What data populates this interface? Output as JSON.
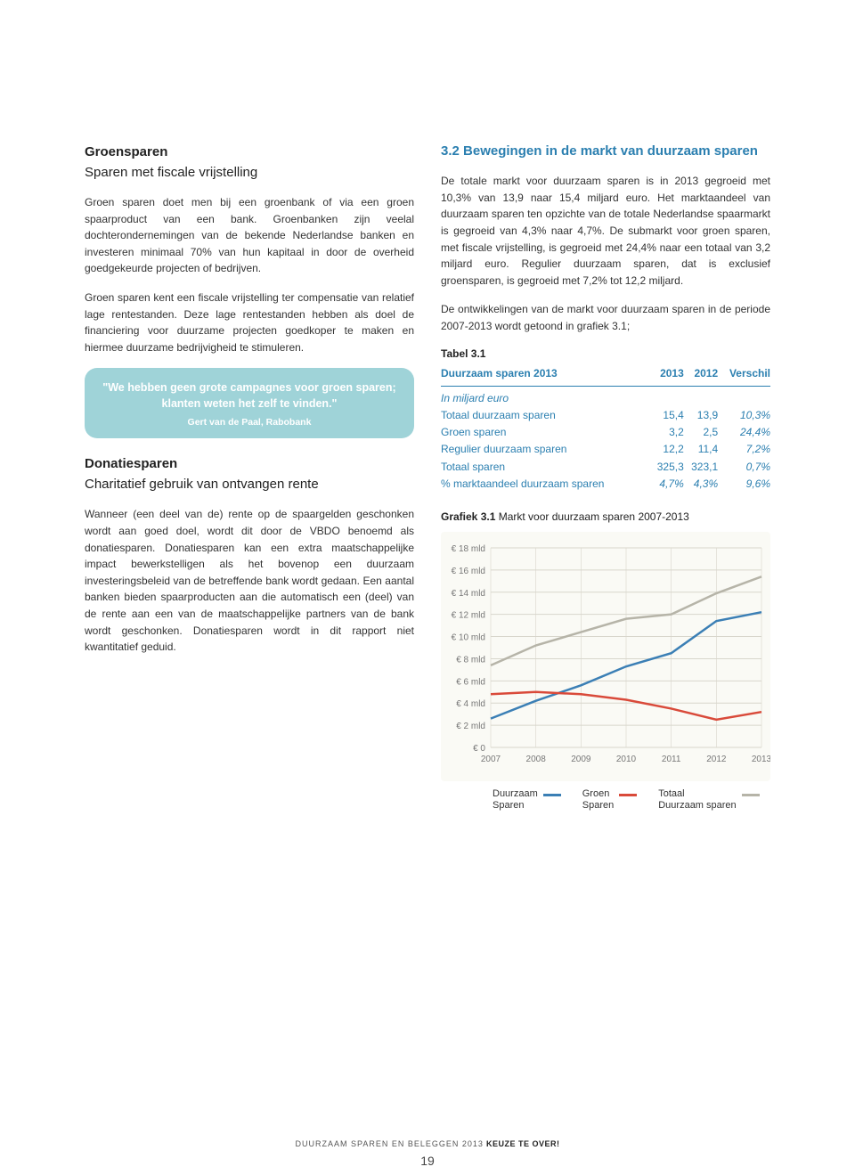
{
  "left": {
    "sec1_title": "Groensparen",
    "sec1_subtitle": "Sparen met fiscale vrijstelling",
    "sec1_p1": "Groen sparen doet men bij een groenbank of via een groen spaarproduct van een bank. Groenbanken zijn veelal dochterondernemingen van de bekende Nederlandse banken en investeren minimaal 70% van hun kapitaal in door de overheid goedgekeurde projecten of bedrijven.",
    "sec1_p2": "Groen sparen kent een fiscale vrijstelling ter compensatie van relatief lage rentestanden. Deze lage rentestanden hebben als doel de financiering voor duurzame projecten goedkoper te maken en hiermee duurzame bedrijvigheid te stimuleren.",
    "quote_text": "\"We hebben geen grote campagnes voor groen sparen; klanten weten het zelf te vinden.\"",
    "quote_author": "Gert van de Paal, Rabobank",
    "sec2_title": "Donatiesparen",
    "sec2_subtitle": "Charitatief gebruik van ontvangen rente",
    "sec2_p1": "Wanneer (een deel van de) rente op de spaargelden geschonken wordt aan goed doel, wordt dit door de VBDO benoemd als donatiesparen. Donatiesparen kan een extra maatschappelijke impact bewerkstelligen als het bovenop een duurzaam investeringsbeleid van de betreffende bank wordt gedaan. Een aantal banken bieden spaarproducten aan die automatisch een (deel) van de rente aan een van de maatschappelijke partners van de bank wordt geschonken. Donatiesparen wordt in dit rapport niet kwantitatief geduid."
  },
  "right": {
    "heading": "3.2 Bewegingen in de markt van duurzaam sparen",
    "p1": "De totale markt voor duurzaam sparen is in 2013 gegroeid met 10,3% van 13,9 naar 15,4 miljard euro. Het marktaandeel van duurzaam sparen ten opzichte van de totale Nederlandse spaarmarkt is gegroeid van 4,3% naar 4,7%. De submarkt voor groen sparen, met fiscale vrijstelling, is gegroeid met 24,4% naar een totaal van 3,2 miljard euro. Regulier duurzaam sparen, dat is exclusief groensparen, is gegroeid met 7,2% tot 12,2 miljard.",
    "p2": "De ontwikkelingen van de markt voor duurzaam sparen in de periode 2007-2013 wordt getoond in grafiek 3.1;",
    "table_label": "Tabel 3.1",
    "table": {
      "header": [
        "Duurzaam sparen 2013",
        "2013",
        "2012",
        "Verschil"
      ],
      "unit": "In miljard euro",
      "rows": [
        [
          "Totaal duurzaam sparen",
          "15,4",
          "13,9",
          "10,3%"
        ],
        [
          "Groen sparen",
          "3,2",
          "2,5",
          "24,4%"
        ],
        [
          "Regulier duurzaam sparen",
          "12,2",
          "11,4",
          "7,2%"
        ],
        [
          "Totaal sparen",
          "325,3",
          "323,1",
          "0,7%"
        ],
        [
          "% marktaandeel duurzaam sparen",
          "4,7%",
          "4,3%",
          "9,6%"
        ]
      ]
    },
    "chart_label_prefix": "Grafiek 3.1",
    "chart_label_rest": " Markt voor duurzaam sparen 2007-2013",
    "chart": {
      "type": "line",
      "background_color": "#fafaf5",
      "grid_color": "#d8d6cc",
      "ylim": [
        0,
        18
      ],
      "ytick_step": 2,
      "ytick_labels": [
        "€ 0",
        "€  2 mld",
        "€  4 mld",
        "€  6 mld",
        "€  8 mld",
        "€ 10 mld",
        "€ 12 mld",
        "€ 14 mld",
        "€ 16 mld",
        "€ 18 mld"
      ],
      "x_labels": [
        "2007",
        "2008",
        "2009",
        "2010",
        "2011",
        "2012",
        "2013"
      ],
      "series": [
        {
          "name": "Duurzaam Sparen",
          "color": "#3b7fb5",
          "line_width": 2.5,
          "values": [
            2.6,
            4.2,
            5.6,
            7.3,
            8.5,
            11.4,
            12.2
          ]
        },
        {
          "name": "Groen Sparen",
          "color": "#d94a3a",
          "line_width": 2.5,
          "values": [
            4.8,
            5.0,
            4.8,
            4.3,
            3.5,
            2.5,
            3.2
          ]
        },
        {
          "name": "Totaal Duurzaam sparen",
          "color": "#b6b4a8",
          "line_width": 2.5,
          "values": [
            7.4,
            9.2,
            10.4,
            11.6,
            12.0,
            13.9,
            15.4
          ]
        }
      ],
      "label_fontsize": 10,
      "axis_color": "#777"
    }
  },
  "footer": {
    "line": "DUURZAAM SPAREN EN BELEGGEN 2013",
    "strong": " KEUZE TE OVER!",
    "page": "19"
  }
}
